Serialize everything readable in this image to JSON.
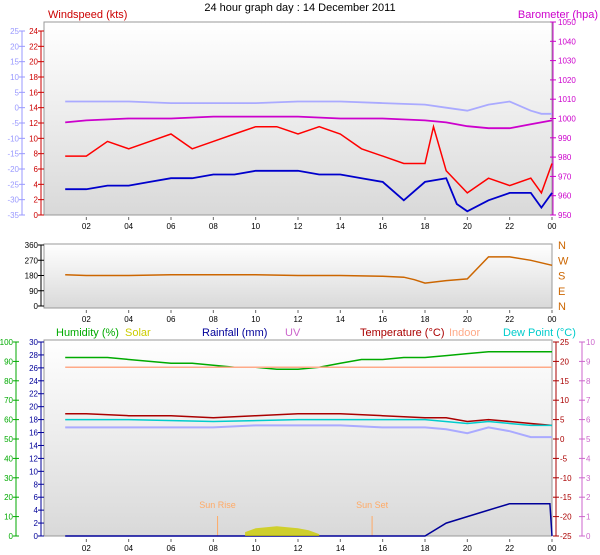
{
  "title": "24 hour graph day : 14 December 2011",
  "x_ticks": [
    "02",
    "04",
    "06",
    "08",
    "10",
    "12",
    "14",
    "16",
    "18",
    "20",
    "22",
    "00"
  ],
  "colors": {
    "windspeed_axis": "#cc0000",
    "baro_axis": "#cc00cc",
    "windchill_axis": "#9999ff",
    "gust": "#ff0000",
    "avg_wind": "#0000cc",
    "baro": "#cc00cc",
    "chill": "#aaaaff",
    "dir": "#cc6600",
    "humidity": "#00aa00",
    "solar": "#cccc00",
    "rain": "#000099",
    "uv": "#cc66cc",
    "temp": "#aa0000",
    "indoor": "#ffaa88",
    "dew": "#00cccc",
    "sun_markers": "#ffaa66"
  },
  "chart_data": [
    {
      "type": "line",
      "panel": "wind",
      "labels": {
        "left": "Windspeed (kts)",
        "right": "Barometer (hpa)"
      },
      "y_left_ticks": [
        "0",
        "2",
        "4",
        "6",
        "8",
        "10",
        "12",
        "14",
        "16",
        "18",
        "20",
        "22",
        "24"
      ],
      "y_left_outer_ticks": [
        "-35",
        "-30",
        "-25",
        "-20",
        "-15",
        "-10",
        "-5",
        "0",
        "5",
        "10",
        "15",
        "20",
        "25"
      ],
      "y_right_ticks": [
        "950",
        "960",
        "970",
        "980",
        "990",
        "1000",
        "1010",
        "1020",
        "1030",
        "1040",
        "1050"
      ],
      "ylim_left": [
        0,
        25
      ],
      "ylim_right": [
        950,
        1050
      ],
      "ylim_outer": [
        -35,
        25
      ],
      "x_hours": [
        0,
        24
      ],
      "series": [
        {
          "key": "gust",
          "axis": "left",
          "x": [
            1,
            2,
            3,
            4,
            5,
            6,
            7,
            8,
            9,
            10,
            11,
            12,
            13,
            14,
            15,
            16,
            17,
            18,
            18.4,
            19,
            20,
            21,
            22,
            23,
            23.5,
            24
          ],
          "values": [
            8,
            8,
            10,
            9,
            10,
            11,
            9,
            10,
            11,
            12,
            12,
            11,
            12,
            11,
            9,
            8,
            7,
            7,
            12,
            6,
            3,
            5,
            4,
            5,
            3,
            7
          ]
        },
        {
          "key": "avg_wind",
          "axis": "left",
          "x": [
            1,
            2,
            3,
            4,
            5,
            6,
            7,
            8,
            9,
            10,
            11,
            12,
            13,
            14,
            15,
            16,
            17,
            18,
            19,
            19.5,
            20,
            21,
            22,
            23,
            23.5,
            24
          ],
          "values": [
            3.5,
            3.5,
            4,
            4,
            4.5,
            5,
            5,
            5.5,
            5.5,
            6,
            6,
            6,
            5.5,
            5.5,
            5,
            4.5,
            2,
            4.5,
            5,
            1.5,
            0.5,
            2,
            3,
            3,
            1,
            3
          ]
        },
        {
          "key": "baro",
          "axis": "right",
          "x": [
            1,
            2,
            4,
            6,
            8,
            10,
            12,
            14,
            16,
            18,
            19,
            20,
            21,
            22,
            23,
            24
          ],
          "values": [
            998,
            999,
            1000,
            1000,
            1001,
            1001,
            1001,
            1000,
            1000,
            999,
            998,
            996,
            995,
            995,
            997,
            999
          ]
        },
        {
          "key": "chill",
          "axis": "outer",
          "x": [
            1,
            2,
            4,
            6,
            8,
            10,
            12,
            14,
            16,
            18,
            19,
            20,
            21,
            22,
            23,
            23.5,
            24
          ],
          "values": [
            2,
            2,
            2,
            1.5,
            1.5,
            1.5,
            2,
            2,
            1.5,
            1,
            0,
            -1,
            1,
            2,
            -1,
            -2,
            -2
          ]
        }
      ]
    },
    {
      "type": "line",
      "panel": "direction",
      "y_ticks": [
        "0",
        "90",
        "180",
        "270",
        "360"
      ],
      "ylim": [
        0,
        360
      ],
      "compass_labels": [
        "N",
        "W",
        "S",
        "E",
        "N"
      ],
      "x_hours": [
        0,
        24
      ],
      "series": [
        {
          "key": "dir",
          "x": [
            1,
            2,
            4,
            6,
            8,
            10,
            12,
            14,
            16,
            17,
            17.5,
            18,
            19,
            20,
            21,
            22,
            23,
            24
          ],
          "values": [
            185,
            180,
            180,
            185,
            185,
            185,
            180,
            180,
            175,
            170,
            155,
            135,
            150,
            160,
            290,
            290,
            270,
            240
          ]
        }
      ]
    },
    {
      "type": "line",
      "panel": "weather",
      "labels": {
        "humidity": "Humidity  (%)",
        "solar": "Solar",
        "rain": "Rainfall (mm)",
        "uv": "UV",
        "temp": "Temperature (°C)",
        "indoor": "Indoor",
        "dew": "Dew Point (°C)"
      },
      "y_hum_ticks": [
        "0",
        "10",
        "20",
        "30",
        "40",
        "50",
        "60",
        "70",
        "80",
        "90",
        "100"
      ],
      "y_rain_ticks": [
        "0",
        "2",
        "4",
        "6",
        "8",
        "10",
        "12",
        "14",
        "16",
        "18",
        "20",
        "22",
        "24",
        "26",
        "28",
        "30"
      ],
      "y_temp_ticks": [
        "-25",
        "-20",
        "-15",
        "-10",
        "-5",
        "0",
        "5",
        "10",
        "15",
        "20",
        "25"
      ],
      "y_uv_ticks": [
        "0",
        "1",
        "2",
        "3",
        "4",
        "5",
        "6",
        "7",
        "8",
        "9",
        "10"
      ],
      "ylim_hum": [
        0,
        100
      ],
      "ylim_temp": [
        -25,
        25
      ],
      "sun_rise": "Sun Rise",
      "sun_set": "Sun Set",
      "sun_rise_hour": 8.2,
      "sun_set_hour": 15.5,
      "x_hours": [
        0,
        24
      ],
      "series": [
        {
          "key": "humidity",
          "axis": "hum",
          "x": [
            1,
            2,
            3,
            4,
            5,
            6,
            7,
            8,
            9,
            10,
            11,
            12,
            13,
            14,
            15,
            16,
            17,
            18,
            19,
            20,
            21,
            22,
            23,
            24
          ],
          "values": [
            92,
            92,
            92,
            91,
            90,
            89,
            89,
            88,
            87,
            87,
            86,
            86,
            87,
            89,
            91,
            91,
            92,
            92,
            93,
            94,
            95,
            95,
            95,
            95
          ]
        },
        {
          "key": "indoor",
          "axis": "temp",
          "x": [
            1,
            4,
            8,
            12,
            16,
            20,
            24
          ],
          "values": [
            18.5,
            18.5,
            18.5,
            18.5,
            18.5,
            18.5,
            18.5
          ]
        },
        {
          "key": "temp",
          "axis": "temp",
          "x": [
            1,
            2,
            4,
            6,
            8,
            10,
            12,
            14,
            16,
            18,
            19,
            20,
            21,
            22,
            23,
            24
          ],
          "values": [
            6.5,
            6.5,
            6,
            6,
            5.5,
            6,
            6.5,
            6.5,
            6,
            5.5,
            5.5,
            4.5,
            5,
            4.5,
            4,
            3.5
          ]
        },
        {
          "key": "dew",
          "axis": "temp",
          "x": [
            1,
            4,
            8,
            12,
            16,
            18,
            20,
            21,
            22,
            23,
            24
          ],
          "values": [
            5,
            5,
            4.5,
            5,
            5,
            5,
            4,
            4.5,
            4,
            3.5,
            3.5
          ]
        },
        {
          "key": "chill2",
          "axis": "temp",
          "x": [
            1,
            2,
            4,
            6,
            8,
            10,
            12,
            14,
            16,
            18,
            19,
            20,
            21,
            22,
            23,
            24
          ],
          "values": [
            3,
            3,
            3,
            3,
            3,
            3.5,
            3.5,
            3.5,
            3,
            3,
            2.5,
            1.5,
            3,
            2,
            0.5,
            0.5
          ]
        },
        {
          "key": "rain",
          "axis": "rain",
          "x": [
            1,
            18,
            19,
            20,
            21,
            22,
            23,
            23.9,
            24
          ],
          "values": [
            0,
            0,
            2,
            3,
            4,
            5,
            5,
            5,
            0
          ]
        },
        {
          "key": "solar",
          "axis": "hum",
          "x": [
            9.5,
            10,
            11,
            12,
            12.5,
            13
          ],
          "values": [
            2,
            4,
            5,
            4,
            3,
            1
          ]
        }
      ]
    }
  ]
}
